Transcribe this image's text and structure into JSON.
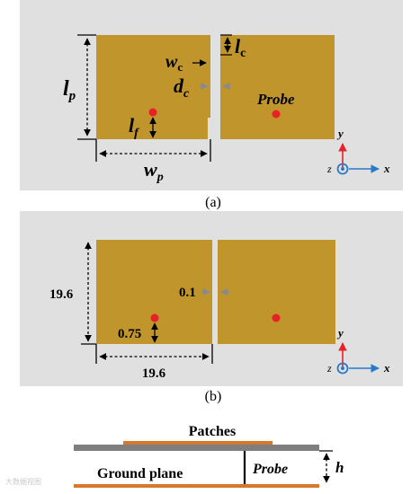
{
  "panel_a": {
    "caption": "(a)",
    "labels": {
      "lp": "l",
      "lp_sub": "p",
      "lf": "l",
      "lf_sub": "f",
      "wp": "w",
      "wp_sub": "p",
      "wc": "w",
      "wc_sub": "c",
      "lc": "l",
      "lc_sub": "c",
      "dc": "d",
      "dc_sub": "c",
      "probe": "Probe"
    },
    "axes": {
      "y": "y",
      "x": "x",
      "z": "z"
    }
  },
  "panel_b": {
    "caption": "(b)",
    "dims": {
      "height": "19.6",
      "width": "19.6",
      "gap": "0.1",
      "feed_offset": "0.75"
    },
    "axes": {
      "y": "y",
      "x": "x",
      "z": "z"
    }
  },
  "side_view": {
    "patches": "Patches",
    "ground": "Ground plane",
    "probe": "Probe",
    "h": "h"
  },
  "watermark": "大数据视图",
  "colors": {
    "panel_bg": "#e0e0e0",
    "patch": "#c0952c",
    "feed": "#e8202a",
    "axis_y": "#e8202a",
    "axis_x": "#2a78c8",
    "substrate": "#7f7f7f",
    "ground": "#d9772a"
  }
}
